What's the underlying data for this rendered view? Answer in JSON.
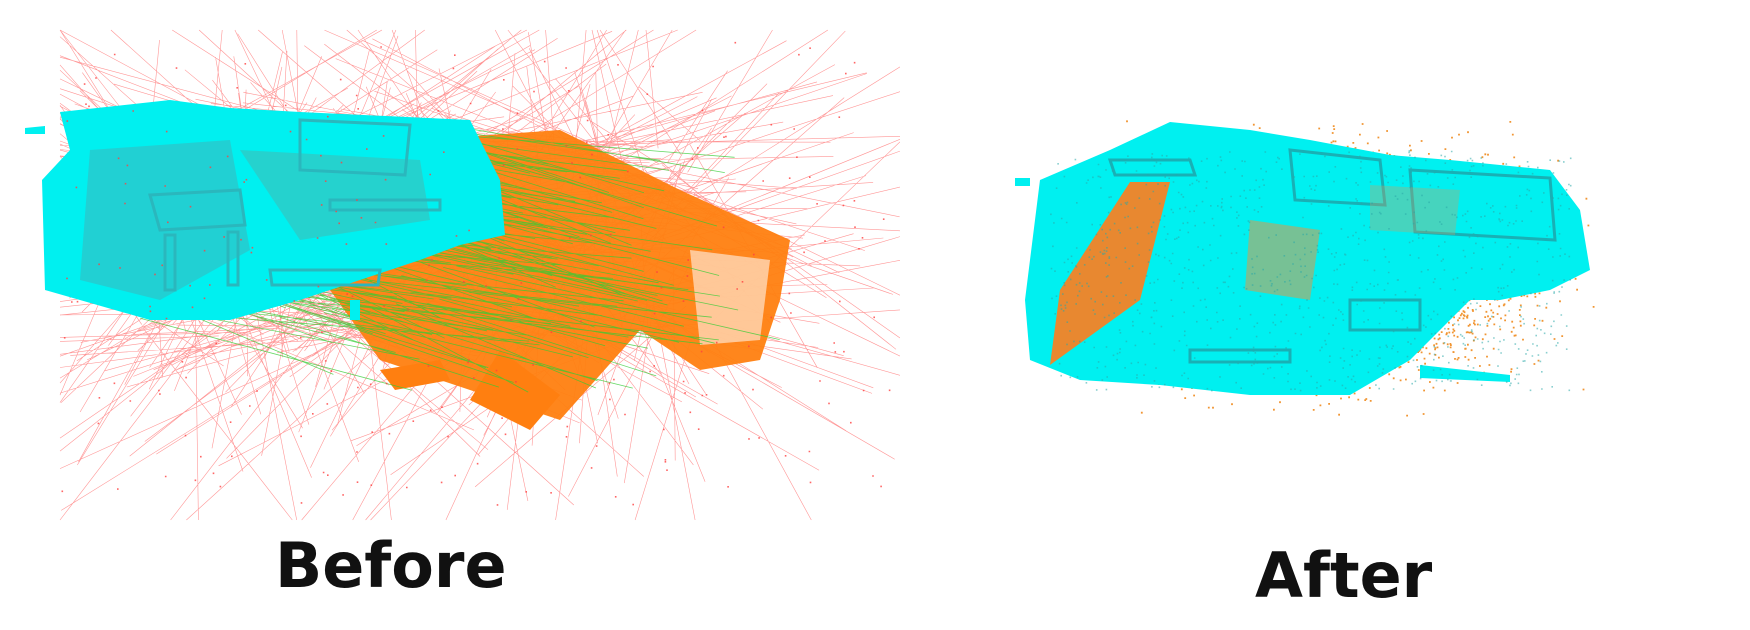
{
  "before": {
    "caption": "Before"
  },
  "after": {
    "caption": "After"
  },
  "colors": {
    "source_cloud": "#00f0f0",
    "target_cloud": "#ff7f10",
    "wrong_correspondence": "#ff4040",
    "right_correspondence": "#33cc33",
    "noise_points": "#f08a1c"
  }
}
